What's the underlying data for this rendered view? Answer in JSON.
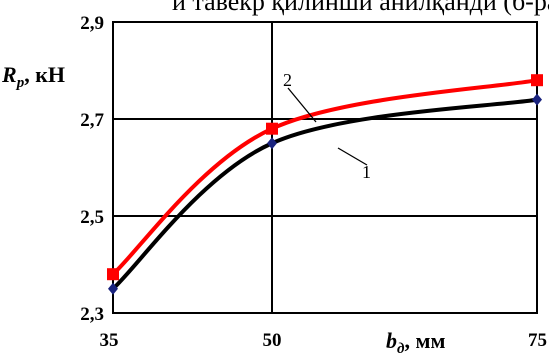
{
  "header_text": "и тавекр қилинши анилқанди (б-ра",
  "chart_data": {
    "type": "line",
    "x": [
      35,
      50,
      75
    ],
    "x_tick_labels": [
      "35",
      "50",
      "75"
    ],
    "y_ticks": [
      2.3,
      2.5,
      2.7,
      2.9
    ],
    "y_tick_labels": [
      "2,3",
      "2,5",
      "2,7",
      "2,9"
    ],
    "xlim": [
      35,
      75
    ],
    "ylim": [
      2.3,
      2.9
    ],
    "grid": true,
    "ylabel": {
      "var": "R",
      "sub": "p",
      "unit": ", кН"
    },
    "xlabel": {
      "var": "b",
      "sub": "д",
      "unit": ", мм"
    },
    "series": [
      {
        "tag": "1",
        "color": "#000000",
        "marker": "diamond",
        "marker_color": "#1a237e",
        "values": [
          2.35,
          2.65,
          2.74
        ]
      },
      {
        "tag": "2",
        "color": "#ff0000",
        "marker": "square",
        "marker_color": "#ff0000",
        "values": [
          2.38,
          2.68,
          2.78
        ]
      }
    ]
  }
}
